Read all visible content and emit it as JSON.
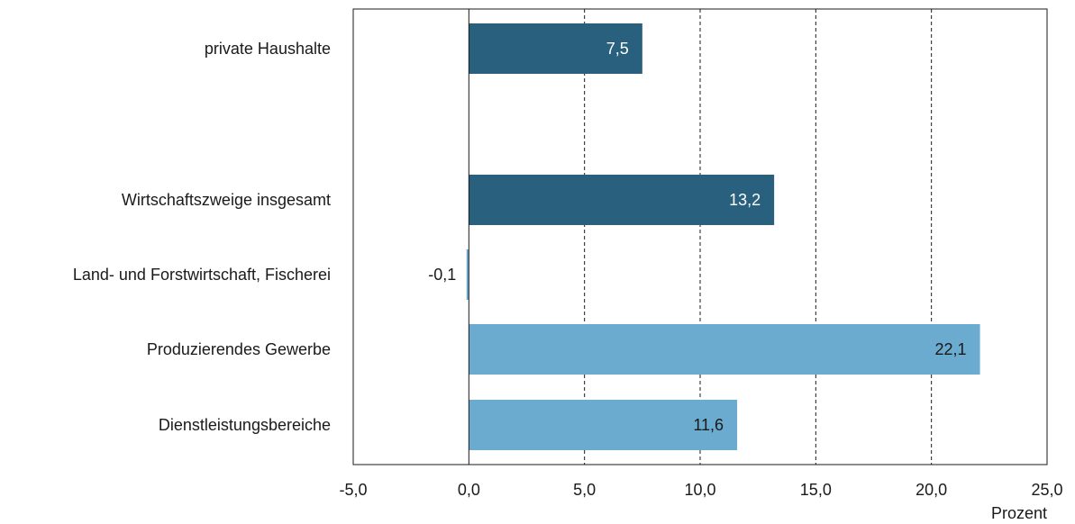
{
  "chart_data": {
    "type": "bar",
    "orientation": "horizontal",
    "xlabel": "Prozent",
    "xlim": [
      -5,
      25
    ],
    "xticks": [
      -5,
      0,
      5,
      10,
      15,
      20,
      25
    ],
    "tick_labels": [
      "-5,0",
      "0,0",
      "5,0",
      "10,0",
      "15,0",
      "20,0",
      "25,0"
    ],
    "grid": "vertical dashed",
    "categories": [
      "private Haushalte",
      "Wirtschaftszweige insgesamt",
      "Land- und Forstwirtschaft, Fischerei",
      "Produzierendes Gewerbe",
      "Dienstleistungsbereiche"
    ],
    "values": [
      7.5,
      13.2,
      -0.1,
      22.1,
      11.6
    ],
    "value_labels": [
      "7,5",
      "13,2",
      "-0,1",
      "22,1",
      "11,6"
    ],
    "colors": [
      "#28607e",
      "#28607e",
      "#6aabcf",
      "#6aabcf",
      "#6aabcf"
    ]
  }
}
